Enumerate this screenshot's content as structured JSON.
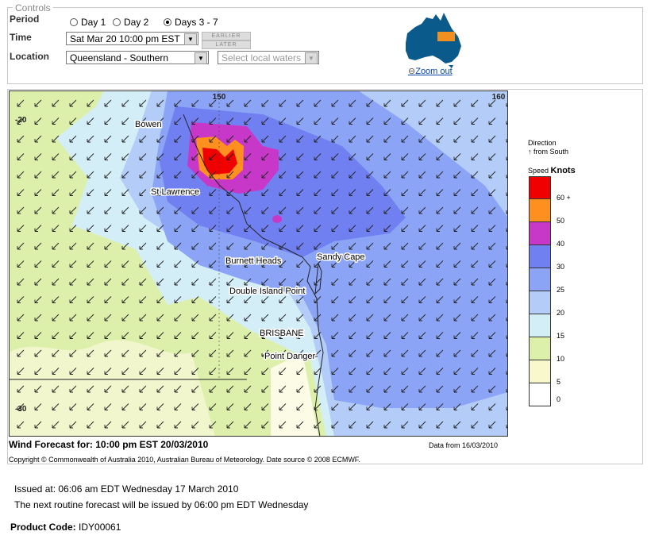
{
  "controls": {
    "legend": "Controls",
    "period_label": "Period",
    "period_options": [
      "Day 1",
      "Day 2",
      "Days 3 - 7"
    ],
    "time_label": "Time",
    "time_value": "Sat Mar 20 10:00 pm EST",
    "earlier": "EARLIER",
    "later": "LATER",
    "location_label": "Location",
    "location_value": "Queensland - Southern",
    "waters": "Select local waters",
    "zoom": "Zoom out"
  },
  "map": {
    "lon_labels": [
      "150",
      "160"
    ],
    "lat_labels": [
      "-20",
      "-30"
    ],
    "places": [
      "Bowen",
      "St Lawrence",
      "Burnett Heads",
      "Sandy Cape",
      "Double Island Point",
      "BRISBANE",
      "Point Danger"
    ],
    "caption": "Wind Forecast for: 10:00 pm EST 20/03/2010",
    "data_from": "Data from 16/03/2010",
    "copyright": "Copyright © Commonwealth of Australia 2010, Australian Bureau of Meteorology. Date source © 2008 ECMWF."
  },
  "legend": {
    "direction": "Direction",
    "direction_note": "from South",
    "speed": "Speed",
    "units": "Knots",
    "levels": [
      {
        "label": "60 +",
        "color": "#f00000"
      },
      {
        "label": "50",
        "color": "#ff9020"
      },
      {
        "label": "40",
        "color": "#c838c8"
      },
      {
        "label": "30",
        "color": "#7080f0"
      },
      {
        "label": "25",
        "color": "#8ca4f6"
      },
      {
        "label": "20",
        "color": "#b4ccf8"
      },
      {
        "label": "15",
        "color": "#d4eef8"
      },
      {
        "label": "10",
        "color": "#dcf0ac"
      },
      {
        "label": "5",
        "color": "#f8f8cc"
      },
      {
        "label": "0",
        "color": "#ffffff"
      }
    ]
  },
  "footer": {
    "issued": "Issued at: 06:06 am EDT Wednesday 17 March 2010",
    "next": "The next routine forecast will be issued by 06:00 pm EDT Wednesday",
    "product_label": "Product Code:",
    "product_code": "IDY00061"
  }
}
